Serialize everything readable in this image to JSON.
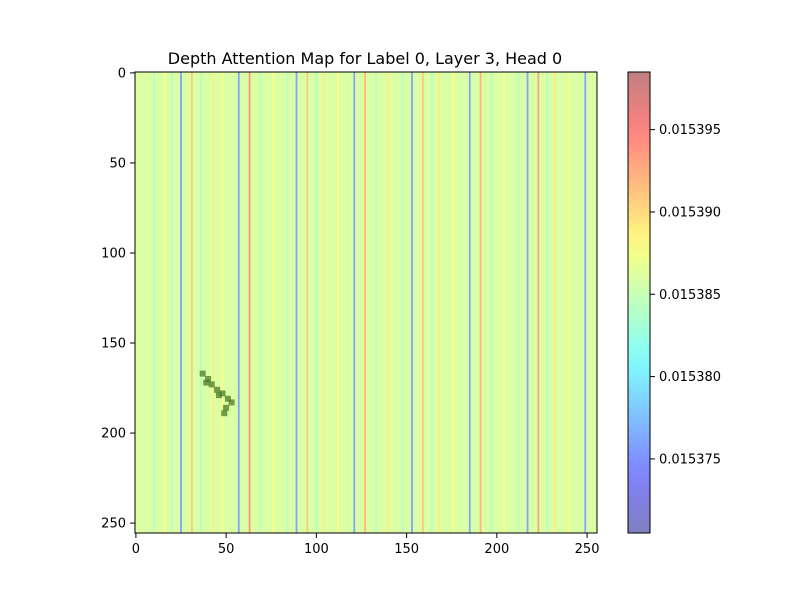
{
  "chart_data": {
    "type": "heatmap",
    "title": "Depth Attention Map for Label 0, Layer 3, Head 0",
    "xlabel": "",
    "ylabel": "",
    "x_range": [
      0,
      255
    ],
    "y_range": [
      0,
      255
    ],
    "y_inverted": true,
    "x_ticks": [
      0,
      50,
      100,
      150,
      200,
      250
    ],
    "y_ticks": [
      0,
      50,
      100,
      150,
      200,
      250
    ],
    "grid": false,
    "colormap": "jet",
    "overlay_alpha": 0.5,
    "pattern": "values vary by column (vertical stripes), nearly constant down each column",
    "base_value": 0.015386,
    "colorbar": {
      "range": [
        0.0153705,
        0.0153985
      ],
      "ticks": [
        0.015375,
        0.01538,
        0.015385,
        0.01539,
        0.015395
      ],
      "tick_labels": [
        "0.015375",
        "0.015380",
        "0.015385",
        "0.015390",
        "0.015395"
      ]
    },
    "column_values": [
      {
        "x": 25,
        "value": 0.015376
      },
      {
        "x": 57,
        "value": 0.015376
      },
      {
        "x": 89,
        "value": 0.015376
      },
      {
        "x": 121,
        "value": 0.015376
      },
      {
        "x": 153,
        "value": 0.015376
      },
      {
        "x": 185,
        "value": 0.015376
      },
      {
        "x": 217,
        "value": 0.015376
      },
      {
        "x": 249,
        "value": 0.015376
      },
      {
        "x": 31,
        "value": 0.015391
      },
      {
        "x": 63,
        "value": 0.015394
      },
      {
        "x": 95,
        "value": 0.015391
      },
      {
        "x": 127,
        "value": 0.015392
      },
      {
        "x": 159,
        "value": 0.015391
      },
      {
        "x": 191,
        "value": 0.015392
      },
      {
        "x": 223,
        "value": 0.015393
      },
      {
        "x": 16,
        "value": 0.015388
      },
      {
        "x": 43,
        "value": 0.015389
      },
      {
        "x": 48,
        "value": 0.015388
      },
      {
        "x": 76,
        "value": 0.015388
      },
      {
        "x": 104,
        "value": 0.015389
      },
      {
        "x": 112,
        "value": 0.015388
      },
      {
        "x": 140,
        "value": 0.015389
      },
      {
        "x": 168,
        "value": 0.015389
      },
      {
        "x": 176,
        "value": 0.015388
      },
      {
        "x": 204,
        "value": 0.015388
      },
      {
        "x": 232,
        "value": 0.015389
      },
      {
        "x": 240,
        "value": 0.015388
      },
      {
        "x": 10,
        "value": 0.015384
      },
      {
        "x": 20,
        "value": 0.015384
      },
      {
        "x": 36,
        "value": 0.015384
      },
      {
        "x": 69,
        "value": 0.015384
      },
      {
        "x": 84,
        "value": 0.015384
      },
      {
        "x": 100,
        "value": 0.015384
      },
      {
        "x": 133,
        "value": 0.015384
      },
      {
        "x": 148,
        "value": 0.015384
      },
      {
        "x": 164,
        "value": 0.015384
      },
      {
        "x": 197,
        "value": 0.015384
      },
      {
        "x": 212,
        "value": 0.015384
      },
      {
        "x": 228,
        "value": 0.015384
      }
    ]
  }
}
